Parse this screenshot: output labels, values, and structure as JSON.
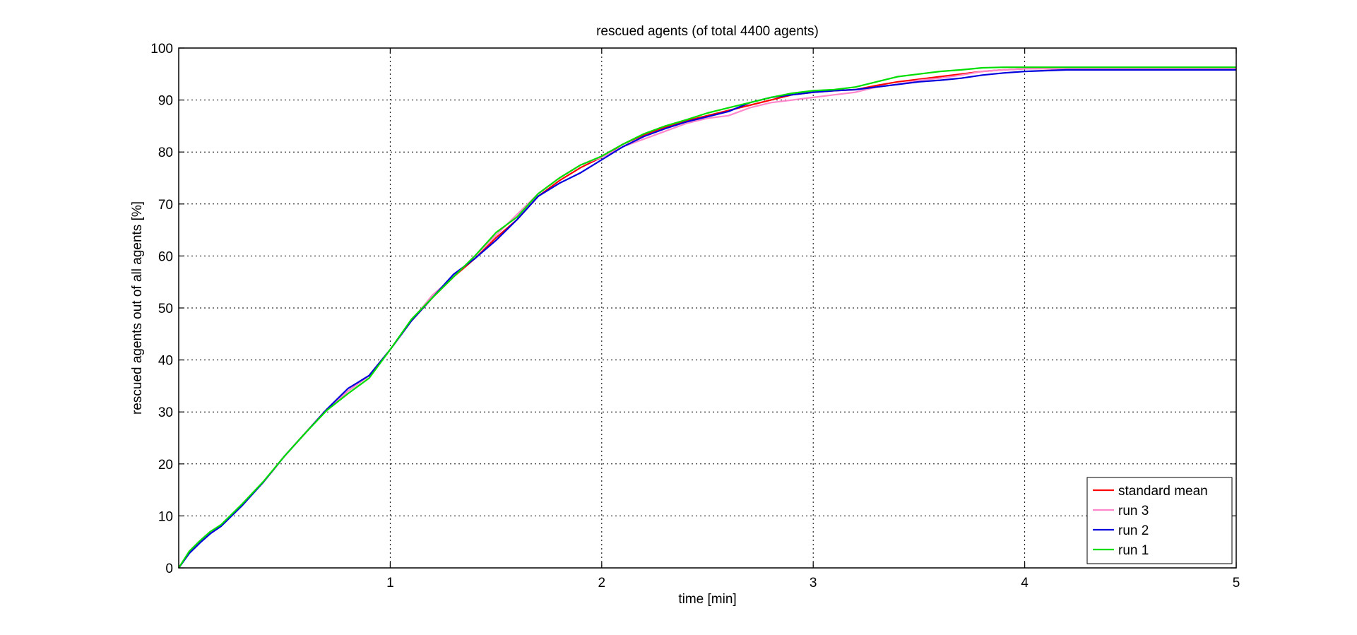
{
  "colors": {
    "axis": "#000000",
    "grid": "#000000",
    "background": "#ffffff"
  },
  "chart_data": {
    "type": "line",
    "title": "rescued agents (of total 4400 agents)",
    "xlabel": "time [min]",
    "ylabel": "rescued agents out of all agents [%]",
    "xlim": [
      0,
      5
    ],
    "ylim": [
      0,
      100
    ],
    "xticks": [
      "1",
      "2",
      "3",
      "4",
      "5"
    ],
    "yticks": [
      "0",
      "10",
      "20",
      "30",
      "40",
      "50",
      "60",
      "70",
      "80",
      "90",
      "100"
    ],
    "grid": true,
    "legend_position": "bottom-right",
    "series": [
      {
        "name": "standard mean",
        "color": "#ff0000",
        "x": [
          0,
          0.05,
          0.1,
          0.15,
          0.2,
          0.3,
          0.4,
          0.5,
          0.6,
          0.7,
          0.8,
          0.9,
          1.0,
          1.1,
          1.2,
          1.3,
          1.4,
          1.5,
          1.6,
          1.7,
          1.8,
          1.9,
          2.0,
          2.1,
          2.2,
          2.3,
          2.4,
          2.5,
          2.6,
          2.7,
          2.8,
          2.9,
          3.0,
          3.1,
          3.2,
          3.3,
          3.4,
          3.5,
          3.6,
          3.7,
          3.8,
          3.9,
          4.0,
          4.2,
          4.4,
          4.6,
          4.8,
          5.0
        ],
        "values": [
          0,
          3.0,
          5.0,
          6.8,
          8.2,
          12.2,
          16.5,
          21.5,
          26.0,
          30.5,
          34.0,
          37.0,
          42.0,
          47.5,
          52.0,
          56.0,
          59.5,
          63.5,
          67.0,
          71.5,
          74.5,
          77.0,
          79.0,
          81.5,
          83.3,
          84.8,
          86.0,
          87.0,
          88.0,
          89.0,
          90.0,
          91.0,
          91.5,
          91.8,
          92.0,
          92.8,
          93.5,
          94.0,
          94.5,
          95.0,
          95.5,
          95.8,
          96.0,
          96.0,
          96.0,
          96.0,
          96.0,
          96.0
        ]
      },
      {
        "name": "run 3",
        "color": "#ff88cc",
        "x": [
          0,
          0.05,
          0.1,
          0.15,
          0.2,
          0.3,
          0.4,
          0.5,
          0.6,
          0.7,
          0.8,
          0.9,
          1.0,
          1.1,
          1.2,
          1.3,
          1.4,
          1.5,
          1.6,
          1.7,
          1.8,
          1.9,
          2.0,
          2.1,
          2.2,
          2.3,
          2.4,
          2.5,
          2.6,
          2.7,
          2.8,
          2.9,
          3.0,
          3.1,
          3.2,
          3.3,
          3.4,
          3.5,
          3.6,
          3.7,
          3.8,
          3.9,
          4.0,
          4.2,
          4.4,
          4.6,
          4.8,
          5.0
        ],
        "values": [
          0,
          3.0,
          5.0,
          6.8,
          8.2,
          12.2,
          16.5,
          21.5,
          26.0,
          30.5,
          34.0,
          37.0,
          42.0,
          47.5,
          52.5,
          56.0,
          60.0,
          64.0,
          68.0,
          72.0,
          75.0,
          77.5,
          79.0,
          81.0,
          82.5,
          84.0,
          85.5,
          86.5,
          87.0,
          88.5,
          89.5,
          90.0,
          90.5,
          91.0,
          91.5,
          92.5,
          93.0,
          93.8,
          94.2,
          94.8,
          95.5,
          95.8,
          96.0,
          96.0,
          96.0,
          96.0,
          96.0,
          96.0
        ]
      },
      {
        "name": "run 2",
        "color": "#0000dd",
        "x": [
          0,
          0.05,
          0.1,
          0.15,
          0.2,
          0.3,
          0.4,
          0.5,
          0.6,
          0.7,
          0.8,
          0.9,
          1.0,
          1.1,
          1.2,
          1.3,
          1.4,
          1.5,
          1.6,
          1.7,
          1.8,
          1.9,
          2.0,
          2.1,
          2.2,
          2.3,
          2.4,
          2.5,
          2.6,
          2.7,
          2.8,
          2.9,
          3.0,
          3.1,
          3.2,
          3.3,
          3.4,
          3.5,
          3.6,
          3.7,
          3.8,
          3.9,
          4.0,
          4.2,
          4.4,
          4.6,
          4.8,
          5.0
        ],
        "values": [
          0,
          2.8,
          4.8,
          6.6,
          8.0,
          12.0,
          16.5,
          21.5,
          26.0,
          30.5,
          34.5,
          37.0,
          42.0,
          47.5,
          52.0,
          56.5,
          59.5,
          63.0,
          67.0,
          71.5,
          74.0,
          76.0,
          78.5,
          81.0,
          83.0,
          84.5,
          85.8,
          86.8,
          87.8,
          89.5,
          90.5,
          91.0,
          91.5,
          91.8,
          92.0,
          92.5,
          93.0,
          93.5,
          93.8,
          94.2,
          94.8,
          95.2,
          95.5,
          95.8,
          95.8,
          95.8,
          95.8,
          95.8
        ]
      },
      {
        "name": "run 1",
        "color": "#00dd00",
        "x": [
          0,
          0.05,
          0.1,
          0.15,
          0.2,
          0.3,
          0.4,
          0.5,
          0.6,
          0.7,
          0.8,
          0.9,
          1.0,
          1.1,
          1.2,
          1.3,
          1.4,
          1.5,
          1.6,
          1.7,
          1.8,
          1.9,
          2.0,
          2.1,
          2.2,
          2.3,
          2.4,
          2.5,
          2.6,
          2.7,
          2.8,
          2.9,
          3.0,
          3.1,
          3.2,
          3.3,
          3.4,
          3.5,
          3.6,
          3.7,
          3.8,
          3.9,
          4.0,
          4.2,
          4.4,
          4.6,
          4.8,
          5.0
        ],
        "values": [
          0,
          3.2,
          5.2,
          7.0,
          8.3,
          12.3,
          16.6,
          21.5,
          26.0,
          30.3,
          33.5,
          36.5,
          42.0,
          47.8,
          52.0,
          56.0,
          60.0,
          64.5,
          67.5,
          72.0,
          75.0,
          77.5,
          79.2,
          81.5,
          83.5,
          85.0,
          86.2,
          87.5,
          88.5,
          89.5,
          90.5,
          91.3,
          91.8,
          92.0,
          92.5,
          93.5,
          94.5,
          95.0,
          95.5,
          95.8,
          96.2,
          96.3,
          96.3,
          96.3,
          96.3,
          96.3,
          96.3,
          96.3
        ]
      }
    ]
  }
}
